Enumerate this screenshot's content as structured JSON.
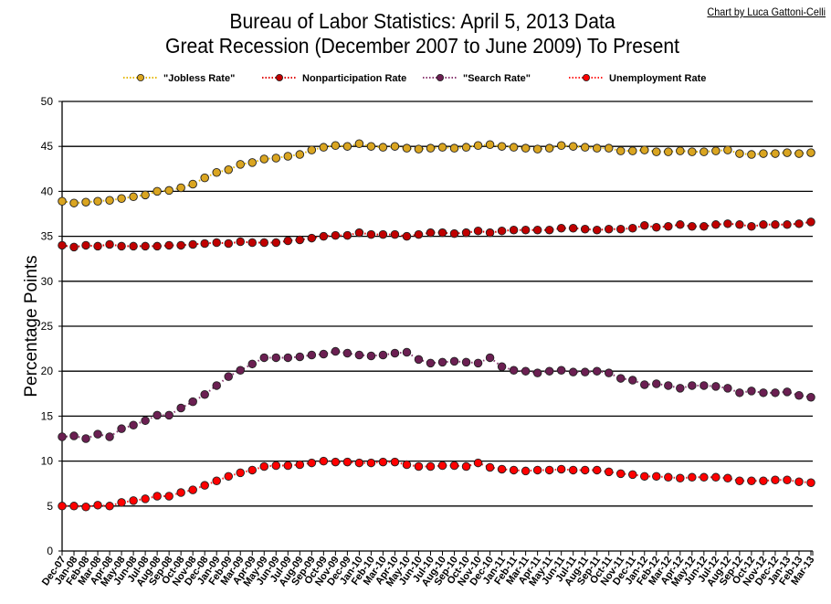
{
  "credit": "Chart by Luca Gattoni-Celli",
  "chart_data": {
    "type": "line",
    "title": [
      "Bureau of Labor Statistics: April 5, 2013 Data",
      "Great Recession (December 2007 to June 2009) To Present"
    ],
    "xlabel": "",
    "ylabel": "Percentage Points",
    "ylim": [
      0,
      50
    ],
    "yticks": [
      "0",
      "5",
      "10",
      "15",
      "20",
      "25",
      "30",
      "35",
      "40",
      "45",
      "50"
    ],
    "grid": true,
    "legend_position": "top",
    "categories": [
      "Dec-07",
      "Jan-08",
      "Feb-08",
      "Mar-08",
      "Apr-08",
      "May-08",
      "Jun-08",
      "Jul-08",
      "Aug-08",
      "Sep-08",
      "Oct-08",
      "Nov-08",
      "Dec-08",
      "Jan-09",
      "Feb-09",
      "Mar-09",
      "Apr-09",
      "May-09",
      "Jun-09",
      "Jul-09",
      "Aug-09",
      "Sep-09",
      "Oct-09",
      "Nov-09",
      "Dec-09",
      "Jan-10",
      "Feb-10",
      "Mar-10",
      "Apr-10",
      "May-10",
      "Jun-10",
      "Jul-10",
      "Aug-10",
      "Sep-10",
      "Oct-10",
      "Nov-10",
      "Dec-10",
      "Jan-11",
      "Feb-11",
      "Mar-11",
      "Apr-11",
      "May-11",
      "Jun-11",
      "Jul-11",
      "Aug-11",
      "Sep-11",
      "Oct-11",
      "Nov-11",
      "Dec-11",
      "Jan-12",
      "Feb-12",
      "Mar-12",
      "Apr-12",
      "May-12",
      "Jun-12",
      "Jul-12",
      "Aug-12",
      "Sep-12",
      "Oct-12",
      "Nov-12",
      "Dec-12",
      "Jan-13",
      "Feb-13",
      "Mar-13"
    ],
    "series": [
      {
        "name": "\"Jobless Rate\"",
        "fill": "#DAA520",
        "line": "#E6B800",
        "values": [
          38.9,
          38.7,
          38.8,
          38.9,
          39.0,
          39.2,
          39.4,
          39.6,
          40.0,
          40.1,
          40.4,
          40.8,
          41.5,
          42.1,
          42.4,
          43.0,
          43.2,
          43.6,
          43.7,
          43.9,
          44.1,
          44.6,
          44.9,
          45.1,
          45.0,
          45.3,
          45.0,
          44.9,
          45.0,
          44.8,
          44.7,
          44.8,
          44.9,
          44.8,
          44.9,
          45.1,
          45.2,
          45.0,
          44.9,
          44.8,
          44.7,
          44.8,
          45.1,
          45.0,
          44.9,
          44.8,
          44.8,
          44.5,
          44.5,
          44.6,
          44.4,
          44.4,
          44.5,
          44.4,
          44.4,
          44.5,
          44.6,
          44.2,
          44.1,
          44.2,
          44.2,
          44.3,
          44.2,
          44.3
        ]
      },
      {
        "name": "Nonparticipation Rate",
        "fill": "#C00000",
        "line": "#E00000",
        "values": [
          34.0,
          33.8,
          34.0,
          33.9,
          34.1,
          33.9,
          33.9,
          33.9,
          33.9,
          34.0,
          34.0,
          34.1,
          34.2,
          34.3,
          34.2,
          34.4,
          34.3,
          34.3,
          34.3,
          34.5,
          34.6,
          34.8,
          35.0,
          35.1,
          35.1,
          35.4,
          35.2,
          35.2,
          35.2,
          35.0,
          35.2,
          35.4,
          35.4,
          35.3,
          35.4,
          35.6,
          35.4,
          35.6,
          35.7,
          35.7,
          35.7,
          35.7,
          35.9,
          35.9,
          35.8,
          35.7,
          35.8,
          35.8,
          35.9,
          36.2,
          36.0,
          36.1,
          36.3,
          36.1,
          36.1,
          36.3,
          36.4,
          36.3,
          36.1,
          36.3,
          36.3,
          36.3,
          36.4,
          36.6
        ]
      },
      {
        "name": "\"Search Rate\"",
        "fill": "#6B1F52",
        "line": "#8B3A72",
        "values": [
          12.7,
          12.8,
          12.5,
          13.0,
          12.7,
          13.6,
          14.0,
          14.5,
          15.1,
          15.1,
          15.9,
          16.6,
          17.4,
          18.4,
          19.4,
          20.1,
          20.8,
          21.5,
          21.5,
          21.5,
          21.6,
          21.8,
          21.9,
          22.2,
          22.0,
          21.8,
          21.7,
          21.8,
          22.0,
          22.1,
          21.3,
          20.9,
          21.0,
          21.1,
          21.0,
          20.9,
          21.5,
          20.5,
          20.1,
          20.0,
          19.8,
          20.0,
          20.1,
          19.9,
          19.9,
          20.0,
          19.8,
          19.2,
          19.0,
          18.5,
          18.6,
          18.4,
          18.1,
          18.4,
          18.4,
          18.3,
          18.1,
          17.6,
          17.8,
          17.6,
          17.6,
          17.7,
          17.3,
          17.1
        ]
      },
      {
        "name": "Unemployment Rate",
        "fill": "#FF0000",
        "line": "#FF2020",
        "values": [
          5.0,
          5.0,
          4.9,
          5.1,
          5.0,
          5.4,
          5.6,
          5.8,
          6.1,
          6.1,
          6.5,
          6.8,
          7.3,
          7.8,
          8.3,
          8.7,
          9.0,
          9.4,
          9.5,
          9.5,
          9.6,
          9.8,
          10.0,
          9.9,
          9.9,
          9.8,
          9.8,
          9.9,
          9.9,
          9.6,
          9.4,
          9.4,
          9.5,
          9.5,
          9.4,
          9.8,
          9.3,
          9.1,
          9.0,
          8.9,
          9.0,
          9.0,
          9.1,
          9.0,
          9.0,
          9.0,
          8.8,
          8.6,
          8.5,
          8.3,
          8.3,
          8.2,
          8.1,
          8.2,
          8.2,
          8.2,
          8.1,
          7.8,
          7.8,
          7.8,
          7.9,
          7.9,
          7.7,
          7.6
        ]
      }
    ]
  }
}
